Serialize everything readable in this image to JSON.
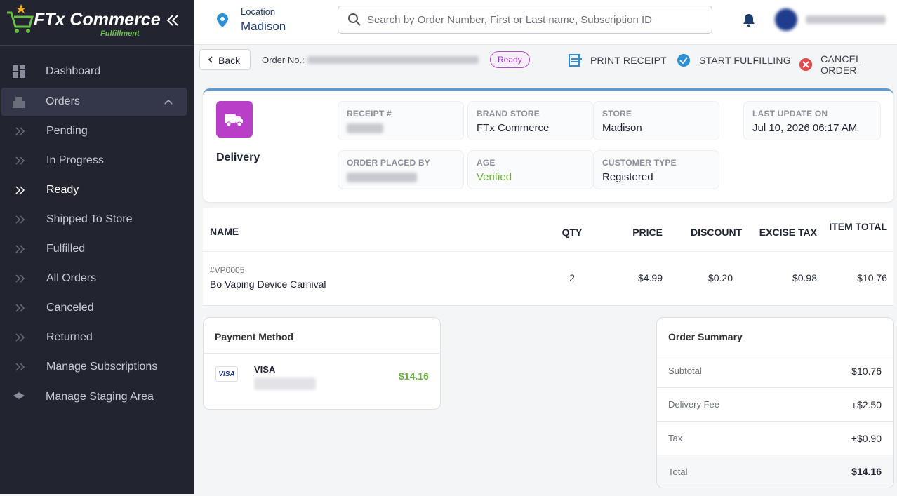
{
  "sidebar": {
    "brand": "FTx Commerce",
    "brand_sub": "Fulfillment",
    "nav": [
      "Dashboard",
      "Orders",
      "Pending",
      "In Progress",
      "Ready",
      "Shipped To Store",
      "Fulfilled",
      "All Orders",
      "Canceled",
      "Returned",
      "Manage Subscriptions",
      "Manage Staging Area"
    ]
  },
  "header": {
    "location_label": "Location",
    "location": "Madison",
    "search_placeholder": "Search by Order Number, First or Last name, Subscription ID"
  },
  "toolbar": {
    "back": "Back",
    "order_no_label": "Order No.:",
    "status": "Ready",
    "actions": [
      "PRINT RECEIPT",
      "START FULFILLING",
      "CANCEL ORDER"
    ]
  },
  "order": {
    "method": "Delivery",
    "fields": [
      {
        "label": "RECEIPT #"
      },
      {
        "label": "BRAND STORE",
        "value": "FTx Commerce"
      },
      {
        "label": "STORE",
        "value": "Madison"
      },
      {
        "label": "LAST UPDATE ON",
        "value": "Jul 10, 2026 06:17 AM"
      },
      {
        "label": "ORDER PLACED BY"
      },
      {
        "label": "AGE",
        "value": "Verified"
      },
      {
        "label": "CUSTOMER TYPE",
        "value": "Registered"
      }
    ]
  },
  "table": {
    "columns": [
      "NAME",
      "QTY",
      "PRICE",
      "DISCOUNT",
      "EXCISE TAX",
      "ITEM TOTAL"
    ],
    "rows": [
      {
        "sku": "#VP0005",
        "name": "Bo Vaping Device Carnival",
        "cells": [
          "2",
          "$4.99",
          "$0.20",
          "$0.98",
          "$10.76"
        ]
      }
    ]
  },
  "payment": {
    "title": "Payment Method",
    "logo": "VISA",
    "card": "VISA",
    "amount": "$14.16"
  },
  "summary": {
    "title": "Order Summary",
    "rows": [
      [
        "Subtotal",
        "$10.76"
      ],
      [
        "Delivery Fee",
        "+$2.50"
      ],
      [
        "Tax",
        "+$0.90"
      ],
      [
        "Total",
        "$14.16"
      ]
    ]
  }
}
